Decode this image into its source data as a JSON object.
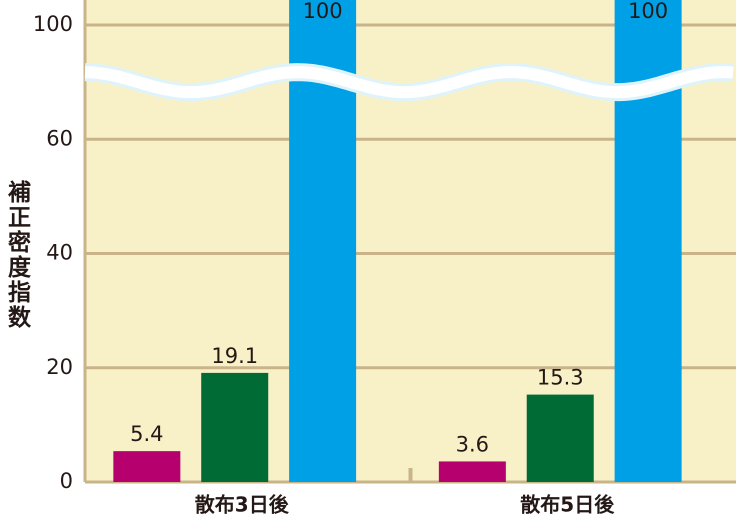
{
  "chart_data": {
    "type": "bar",
    "y_label": "補正密度指数",
    "categories": [
      "散布3日後",
      "散布5日後"
    ],
    "series": [
      {
        "color": "#b5006e",
        "values": [
          5.4,
          3.6
        ]
      },
      {
        "color": "#006b35",
        "values": [
          19.1,
          15.3
        ]
      },
      {
        "color": "#00a0e6",
        "values": [
          100,
          100
        ]
      }
    ],
    "ylim": [
      0,
      100
    ],
    "yticks": [
      0,
      20,
      40,
      60,
      100
    ],
    "axis_break": true,
    "grid": true
  }
}
